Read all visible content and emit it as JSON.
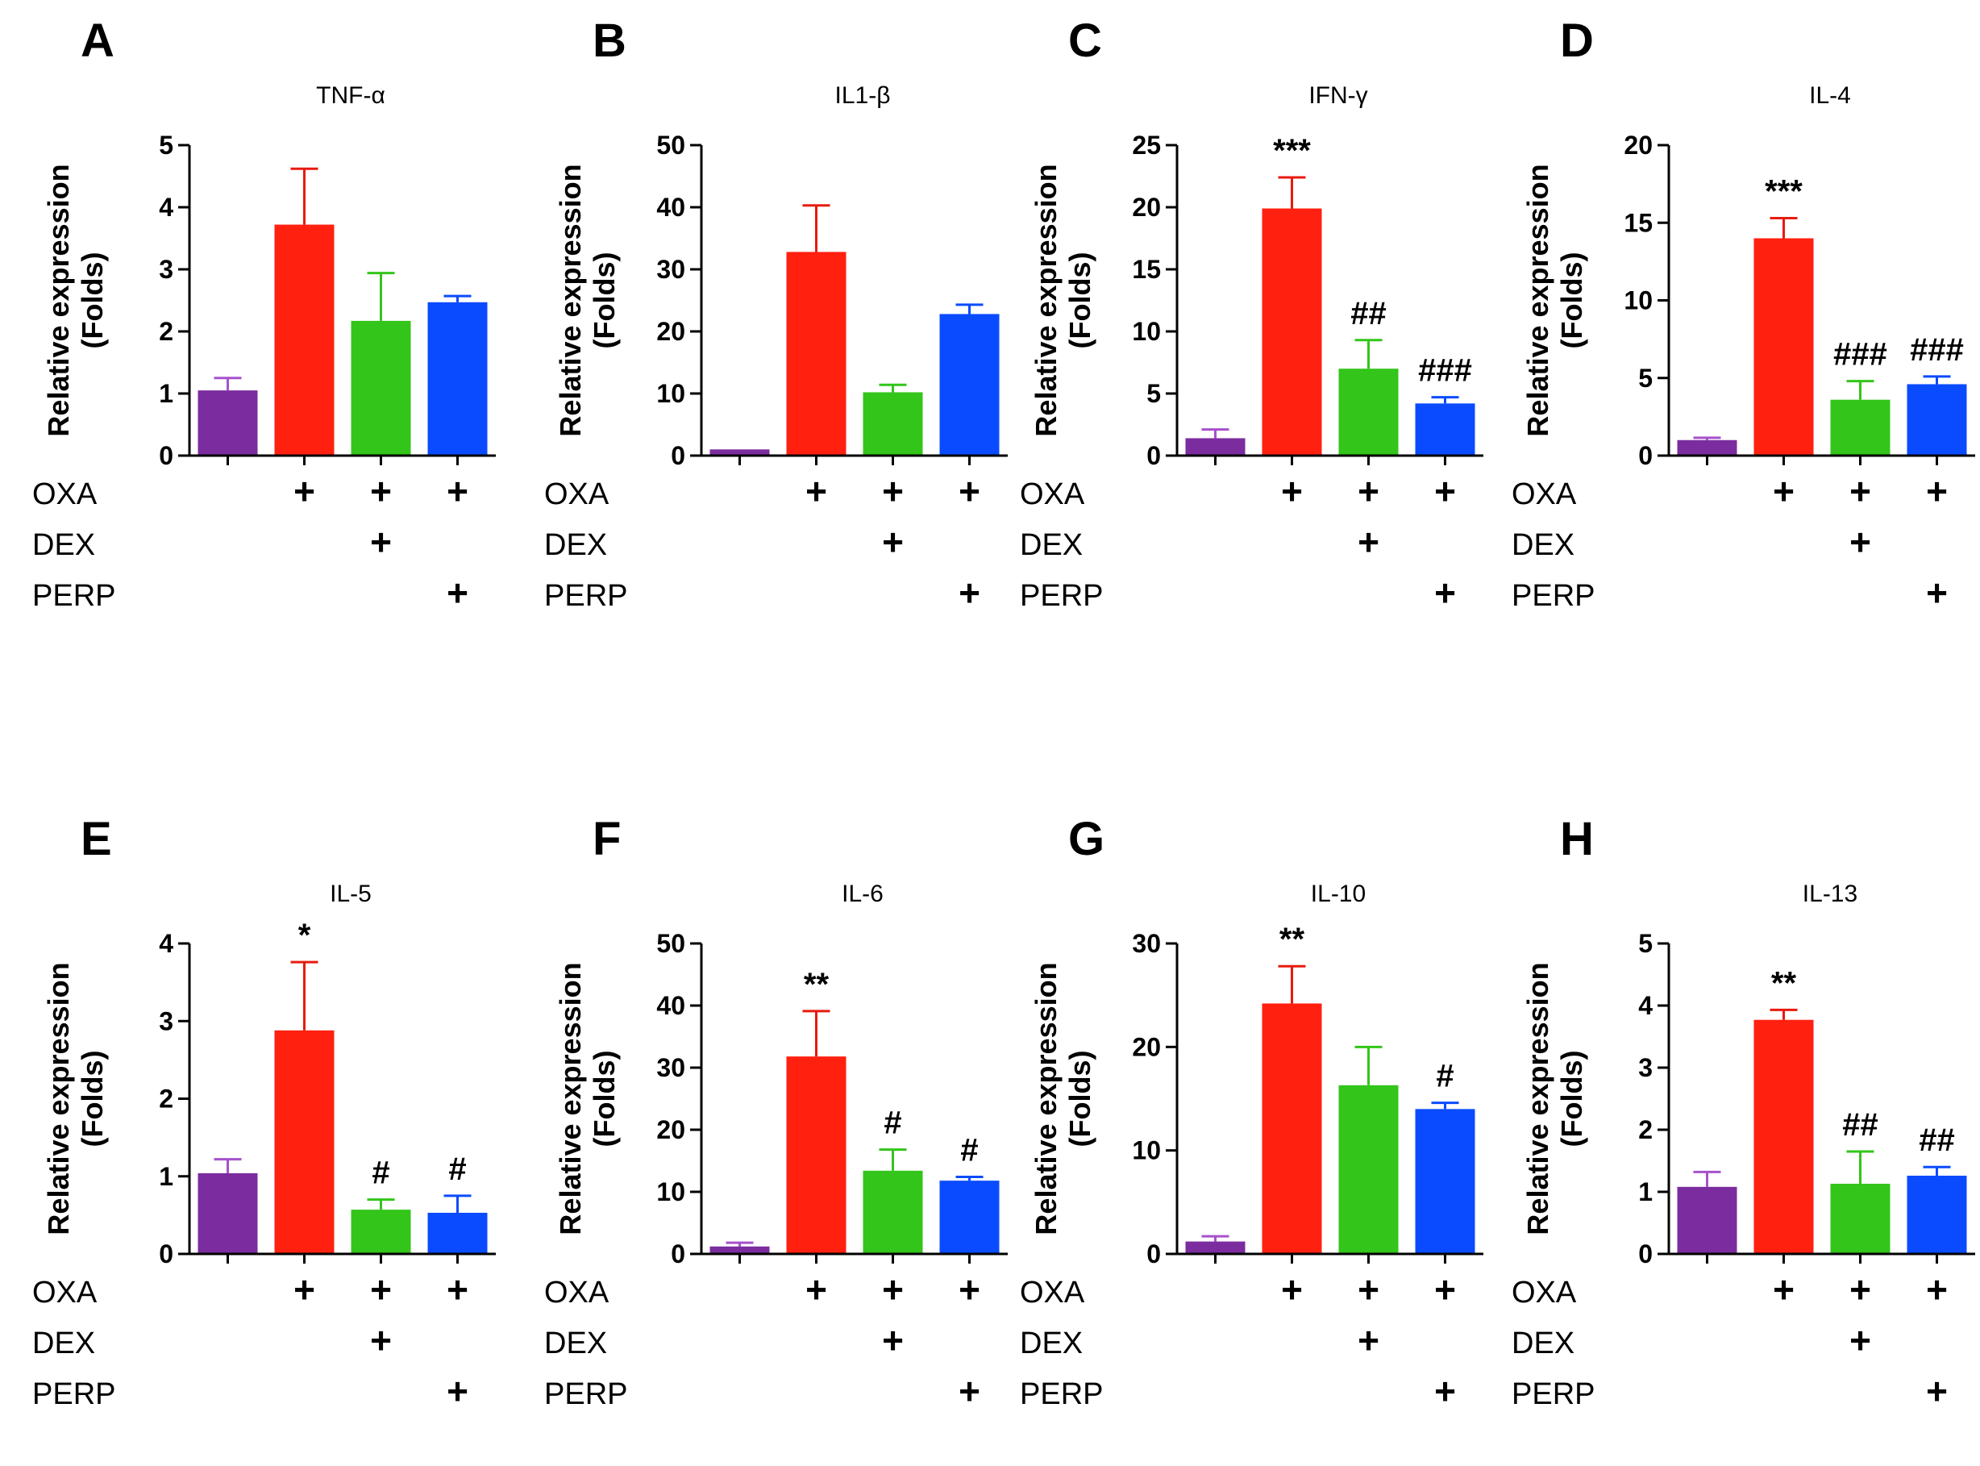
{
  "figure": {
    "condition_rows": [
      "OXA",
      "DEX",
      "PERP"
    ],
    "plus_symbol": "+",
    "group_conditions": [
      [],
      [
        "OXA"
      ],
      [
        "OXA",
        "DEX"
      ],
      [
        "OXA",
        "PERP"
      ]
    ],
    "bar_colors": [
      "#7B2C9E",
      "#FF2010",
      "#33C51A",
      "#0A4BFF"
    ],
    "error_colors": [
      "#A651CC",
      "#E81A0E",
      "#33C51A",
      "#0A4BFF"
    ]
  },
  "chart_data": [
    {
      "panel": "A",
      "type": "bar",
      "title": "TNF-α",
      "ylabel": [
        "Relative expression",
        "(Folds)"
      ],
      "ylim": [
        0,
        5
      ],
      "yticks": [
        0,
        1,
        2,
        3,
        4,
        5
      ],
      "values": [
        1.05,
        3.72,
        2.17,
        2.47
      ],
      "errors": [
        0.2,
        0.9,
        0.77,
        0.1
      ],
      "annotations": [
        "",
        "",
        "",
        ""
      ]
    },
    {
      "panel": "B",
      "type": "bar",
      "title": "IL1-β",
      "ylabel": [
        "Relative expression",
        "(Folds)"
      ],
      "ylim": [
        0,
        50
      ],
      "yticks": [
        0,
        10,
        20,
        30,
        40,
        50
      ],
      "values": [
        1,
        32.8,
        10.2,
        22.8
      ],
      "errors": [
        0,
        7.5,
        1.2,
        1.5
      ],
      "annotations": [
        "",
        "",
        "",
        ""
      ]
    },
    {
      "panel": "C",
      "type": "bar",
      "title": "IFN-γ",
      "ylabel": [
        "Relative expression",
        "(Folds)"
      ],
      "ylim": [
        0,
        25
      ],
      "yticks": [
        0,
        5,
        10,
        15,
        20,
        25
      ],
      "values": [
        1.4,
        19.9,
        7.0,
        4.2
      ],
      "errors": [
        0.7,
        2.5,
        2.3,
        0.5
      ],
      "annotations": [
        "",
        "***",
        "##",
        "###"
      ]
    },
    {
      "panel": "D",
      "type": "bar",
      "title": "IL-4",
      "ylabel": [
        "Relative expression",
        "(Folds)"
      ],
      "ylim": [
        0,
        20
      ],
      "yticks": [
        0,
        5,
        10,
        15,
        20
      ],
      "values": [
        1.0,
        14.0,
        3.6,
        4.6
      ],
      "errors": [
        0.15,
        1.3,
        1.2,
        0.5
      ],
      "annotations": [
        "",
        "***",
        "###",
        "###"
      ]
    },
    {
      "panel": "E",
      "type": "bar",
      "title": "IL-5",
      "ylabel": [
        "Relative expression",
        "(Folds)"
      ],
      "ylim": [
        0,
        4
      ],
      "yticks": [
        0,
        1,
        2,
        3,
        4
      ],
      "values": [
        1.04,
        2.88,
        0.57,
        0.53
      ],
      "errors": [
        0.18,
        0.88,
        0.13,
        0.22
      ],
      "annotations": [
        "",
        "*",
        "#",
        "#"
      ]
    },
    {
      "panel": "F",
      "type": "bar",
      "title": "IL-6",
      "ylabel": [
        "Relative expression",
        "(Folds)"
      ],
      "ylim": [
        0,
        50
      ],
      "yticks": [
        0,
        10,
        20,
        30,
        40,
        50
      ],
      "values": [
        1.2,
        31.8,
        13.4,
        11.8
      ],
      "errors": [
        0.6,
        7.3,
        3.4,
        0.6
      ],
      "annotations": [
        "",
        "**",
        "#",
        "#"
      ]
    },
    {
      "panel": "G",
      "type": "bar",
      "title": "IL-10",
      "ylabel": [
        "Relative expression",
        "(Folds)"
      ],
      "ylim": [
        0,
        30
      ],
      "yticks": [
        0,
        10,
        20,
        30
      ],
      "values": [
        1.2,
        24.2,
        16.3,
        14.0
      ],
      "errors": [
        0.5,
        3.6,
        3.7,
        0.6
      ],
      "annotations": [
        "",
        "**",
        "",
        "#"
      ]
    },
    {
      "panel": "H",
      "type": "bar",
      "title": "IL-13",
      "ylabel": [
        "Relative expression",
        "(Folds)"
      ],
      "ylim": [
        0,
        5
      ],
      "yticks": [
        0,
        1,
        2,
        3,
        4,
        5
      ],
      "values": [
        1.08,
        3.77,
        1.13,
        1.26
      ],
      "errors": [
        0.24,
        0.16,
        0.52,
        0.14
      ],
      "annotations": [
        "",
        "**",
        "##",
        "##"
      ]
    }
  ]
}
